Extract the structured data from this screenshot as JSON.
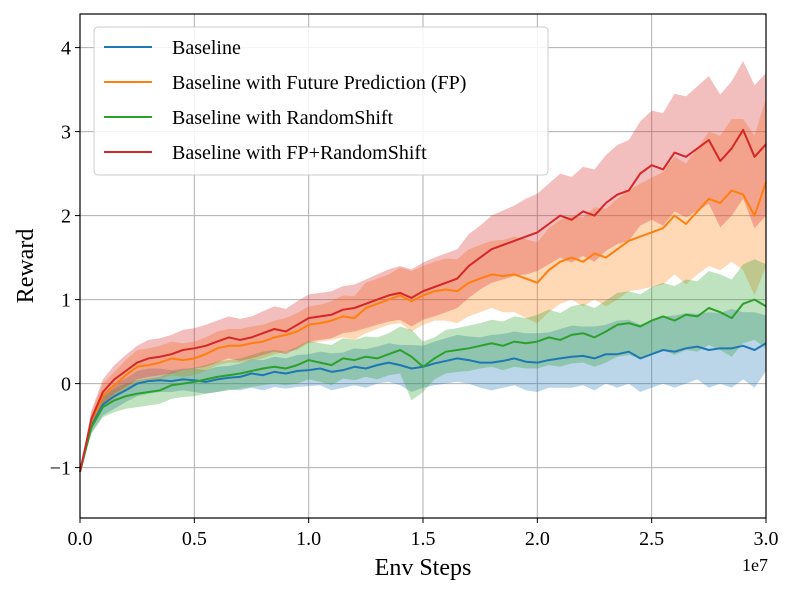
{
  "chart_data": {
    "type": "line",
    "title": "",
    "xlabel": "Env Steps",
    "ylabel": "Reward",
    "x_offset_label": "1e7",
    "xlim": [
      0,
      3.0
    ],
    "ylim": [
      -1.6,
      4.4
    ],
    "xticks": [
      0.0,
      0.5,
      1.0,
      1.5,
      2.0,
      2.5,
      3.0
    ],
    "xtick_labels": [
      "0.0",
      "0.5",
      "1.0",
      "1.5",
      "2.0",
      "2.5",
      "3.0"
    ],
    "yticks": [
      -1,
      0,
      1,
      2,
      3,
      4
    ],
    "ytick_labels": [
      "−1",
      "0",
      "1",
      "2",
      "3",
      "4"
    ],
    "grid": true,
    "legend_position": "top-left",
    "x": [
      0.0,
      0.05,
      0.1,
      0.15,
      0.2,
      0.25,
      0.3,
      0.35,
      0.4,
      0.45,
      0.5,
      0.55,
      0.6,
      0.65,
      0.7,
      0.75,
      0.8,
      0.85,
      0.9,
      0.95,
      1.0,
      1.05,
      1.1,
      1.15,
      1.2,
      1.25,
      1.3,
      1.35,
      1.4,
      1.45,
      1.5,
      1.55,
      1.6,
      1.65,
      1.7,
      1.75,
      1.8,
      1.85,
      1.9,
      1.95,
      2.0,
      2.05,
      2.1,
      2.15,
      2.2,
      2.25,
      2.3,
      2.35,
      2.4,
      2.45,
      2.5,
      2.55,
      2.6,
      2.65,
      2.7,
      2.75,
      2.8,
      2.85,
      2.9,
      2.95,
      3.0
    ],
    "series": [
      {
        "name": "Baseline",
        "color": "#1f77b4",
        "values": [
          -1.05,
          -0.5,
          -0.25,
          -0.15,
          -0.08,
          0.0,
          0.03,
          0.04,
          0.03,
          0.05,
          0.04,
          0.02,
          0.05,
          0.07,
          0.08,
          0.12,
          0.1,
          0.14,
          0.12,
          0.15,
          0.16,
          0.18,
          0.14,
          0.16,
          0.2,
          0.18,
          0.22,
          0.25,
          0.22,
          0.18,
          0.2,
          0.24,
          0.27,
          0.3,
          0.28,
          0.25,
          0.25,
          0.27,
          0.3,
          0.26,
          0.25,
          0.28,
          0.3,
          0.32,
          0.33,
          0.3,
          0.35,
          0.35,
          0.38,
          0.3,
          0.35,
          0.4,
          0.38,
          0.42,
          0.44,
          0.4,
          0.42,
          0.42,
          0.45,
          0.4,
          0.48
        ],
        "lower": [
          -1.05,
          -0.58,
          -0.38,
          -0.3,
          -0.22,
          -0.15,
          -0.12,
          -0.1,
          -0.1,
          -0.08,
          -0.1,
          -0.12,
          -0.1,
          -0.07,
          -0.08,
          -0.05,
          -0.08,
          -0.04,
          -0.06,
          -0.04,
          -0.03,
          -0.02,
          -0.08,
          -0.05,
          -0.02,
          -0.05,
          0.0,
          0.02,
          -0.02,
          -0.1,
          -0.05,
          -0.02,
          0.0,
          0.02,
          0.0,
          -0.05,
          -0.08,
          -0.05,
          -0.02,
          -0.08,
          -0.1,
          -0.05,
          -0.05,
          -0.05,
          -0.02,
          -0.08,
          0.0,
          -0.05,
          0.0,
          -0.1,
          -0.05,
          0.0,
          -0.05,
          0.0,
          0.05,
          -0.05,
          0.0,
          -0.05,
          0.05,
          -0.05,
          0.15
        ],
        "upper": [
          -1.05,
          -0.42,
          -0.12,
          0.0,
          0.06,
          0.15,
          0.18,
          0.18,
          0.16,
          0.18,
          0.18,
          0.16,
          0.2,
          0.21,
          0.24,
          0.29,
          0.28,
          0.32,
          0.3,
          0.34,
          0.35,
          0.38,
          0.36,
          0.37,
          0.42,
          0.41,
          0.44,
          0.48,
          0.46,
          0.46,
          0.45,
          0.5,
          0.54,
          0.58,
          0.56,
          0.55,
          0.58,
          0.59,
          0.62,
          0.6,
          0.6,
          0.61,
          0.65,
          0.69,
          0.68,
          0.68,
          0.7,
          0.75,
          0.76,
          0.7,
          0.75,
          0.8,
          0.81,
          0.84,
          0.83,
          0.85,
          0.84,
          0.89,
          0.85,
          0.85,
          0.81
        ]
      },
      {
        "name": "Baseline with Future Prediction (FP)",
        "color": "#ff7f0e",
        "values": [
          -1.05,
          -0.45,
          -0.15,
          -0.02,
          0.1,
          0.2,
          0.22,
          0.25,
          0.3,
          0.28,
          0.3,
          0.35,
          0.42,
          0.45,
          0.45,
          0.48,
          0.5,
          0.55,
          0.58,
          0.62,
          0.7,
          0.72,
          0.75,
          0.8,
          0.78,
          0.9,
          0.95,
          1.0,
          1.05,
          0.98,
          1.05,
          1.1,
          1.12,
          1.1,
          1.2,
          1.25,
          1.3,
          1.28,
          1.3,
          1.25,
          1.2,
          1.35,
          1.45,
          1.5,
          1.45,
          1.55,
          1.5,
          1.6,
          1.7,
          1.75,
          1.8,
          1.85,
          2.0,
          1.9,
          2.05,
          2.2,
          2.15,
          2.3,
          2.25,
          2.0,
          2.4
        ],
        "lower": [
          -1.05,
          -0.55,
          -0.3,
          -0.18,
          -0.08,
          0.0,
          0.02,
          0.05,
          0.1,
          0.08,
          0.1,
          0.15,
          0.22,
          0.25,
          0.25,
          0.28,
          0.3,
          0.35,
          0.38,
          0.4,
          0.48,
          0.5,
          0.52,
          0.55,
          0.52,
          0.6,
          0.65,
          0.7,
          0.72,
          0.62,
          0.7,
          0.75,
          0.75,
          0.72,
          0.8,
          0.85,
          0.9,
          0.85,
          0.85,
          0.78,
          0.72,
          0.85,
          0.95,
          1.0,
          0.92,
          1.0,
          0.92,
          1.0,
          1.1,
          1.12,
          1.15,
          1.18,
          1.3,
          1.18,
          1.3,
          1.4,
          1.35,
          1.45,
          1.35,
          1.05,
          1.4
        ],
        "upper": [
          -1.05,
          -0.35,
          0.0,
          0.14,
          0.28,
          0.4,
          0.42,
          0.45,
          0.5,
          0.48,
          0.5,
          0.55,
          0.62,
          0.65,
          0.65,
          0.68,
          0.7,
          0.75,
          0.78,
          0.84,
          0.92,
          0.94,
          0.98,
          1.05,
          1.04,
          1.2,
          1.25,
          1.3,
          1.38,
          1.34,
          1.4,
          1.45,
          1.49,
          1.48,
          1.6,
          1.65,
          1.7,
          1.71,
          1.75,
          1.72,
          1.68,
          1.85,
          1.95,
          2.0,
          1.98,
          2.1,
          2.08,
          2.2,
          2.3,
          2.38,
          2.45,
          2.52,
          2.7,
          2.62,
          2.8,
          3.0,
          2.95,
          3.15,
          3.15,
          2.95,
          3.4
        ]
      },
      {
        "name": "Baseline with RandomShift",
        "color": "#2ca02c",
        "values": [
          -1.05,
          -0.52,
          -0.28,
          -0.2,
          -0.15,
          -0.12,
          -0.1,
          -0.08,
          -0.02,
          0.0,
          0.02,
          0.05,
          0.08,
          0.1,
          0.12,
          0.15,
          0.18,
          0.2,
          0.18,
          0.22,
          0.28,
          0.25,
          0.22,
          0.3,
          0.28,
          0.32,
          0.3,
          0.35,
          0.4,
          0.32,
          0.2,
          0.3,
          0.38,
          0.4,
          0.42,
          0.45,
          0.48,
          0.45,
          0.5,
          0.48,
          0.5,
          0.55,
          0.52,
          0.58,
          0.6,
          0.55,
          0.62,
          0.7,
          0.72,
          0.68,
          0.75,
          0.8,
          0.75,
          0.82,
          0.8,
          0.9,
          0.85,
          0.78,
          0.95,
          1.0,
          0.92
        ],
        "lower": [
          -1.05,
          -0.6,
          -0.4,
          -0.34,
          -0.3,
          -0.28,
          -0.26,
          -0.24,
          -0.18,
          -0.16,
          -0.15,
          -0.12,
          -0.1,
          -0.08,
          -0.06,
          -0.04,
          -0.02,
          0.0,
          -0.02,
          0.0,
          0.05,
          0.02,
          -0.02,
          0.06,
          0.04,
          0.08,
          0.05,
          0.1,
          0.12,
          -0.2,
          -0.1,
          0.05,
          0.12,
          0.14,
          0.15,
          0.18,
          0.2,
          0.16,
          0.2,
          0.18,
          0.18,
          0.22,
          0.2,
          0.24,
          0.25,
          0.2,
          0.25,
          0.32,
          0.34,
          0.3,
          0.35,
          0.4,
          0.34,
          0.4,
          0.38,
          0.46,
          0.4,
          0.32,
          0.48,
          0.52,
          0.42
        ],
        "upper": [
          -1.05,
          -0.44,
          -0.16,
          -0.06,
          0.0,
          0.04,
          0.06,
          0.08,
          0.14,
          0.16,
          0.19,
          0.22,
          0.26,
          0.28,
          0.3,
          0.34,
          0.38,
          0.4,
          0.38,
          0.44,
          0.51,
          0.48,
          0.46,
          0.54,
          0.52,
          0.56,
          0.55,
          0.6,
          0.68,
          0.64,
          0.5,
          0.55,
          0.64,
          0.66,
          0.69,
          0.72,
          0.76,
          0.74,
          0.8,
          0.78,
          0.82,
          0.88,
          0.84,
          0.92,
          0.95,
          0.9,
          0.99,
          1.08,
          1.1,
          1.06,
          1.15,
          1.2,
          1.16,
          1.24,
          1.22,
          1.34,
          1.3,
          1.24,
          1.42,
          1.48,
          1.42
        ]
      },
      {
        "name": "Baseline with FP+RandomShift",
        "color": "#d62728",
        "values": [
          -1.05,
          -0.42,
          -0.1,
          0.05,
          0.15,
          0.25,
          0.3,
          0.32,
          0.35,
          0.4,
          0.42,
          0.45,
          0.5,
          0.55,
          0.52,
          0.55,
          0.6,
          0.65,
          0.62,
          0.7,
          0.78,
          0.8,
          0.82,
          0.88,
          0.9,
          0.95,
          1.0,
          1.05,
          1.08,
          1.02,
          1.1,
          1.15,
          1.2,
          1.25,
          1.4,
          1.5,
          1.6,
          1.65,
          1.7,
          1.75,
          1.8,
          1.9,
          2.0,
          1.95,
          2.05,
          2.0,
          2.15,
          2.25,
          2.3,
          2.5,
          2.6,
          2.55,
          2.75,
          2.7,
          2.8,
          2.9,
          2.65,
          2.8,
          3.02,
          2.7,
          2.85
        ],
        "lower": [
          -1.05,
          -0.52,
          -0.25,
          -0.12,
          -0.04,
          0.05,
          0.08,
          0.1,
          0.12,
          0.16,
          0.18,
          0.2,
          0.25,
          0.3,
          0.27,
          0.3,
          0.34,
          0.38,
          0.35,
          0.42,
          0.5,
          0.52,
          0.54,
          0.6,
          0.62,
          0.66,
          0.7,
          0.74,
          0.76,
          0.68,
          0.76,
          0.8,
          0.85,
          0.9,
          1.02,
          1.12,
          1.2,
          1.24,
          1.28,
          1.3,
          1.34,
          1.42,
          1.5,
          1.44,
          1.52,
          1.45,
          1.58,
          1.66,
          1.7,
          1.88,
          1.95,
          1.88,
          2.05,
          1.98,
          2.06,
          2.14,
          1.86,
          2.0,
          2.2,
          1.85,
          2.0
        ],
        "upper": [
          -1.05,
          -0.32,
          0.05,
          0.22,
          0.34,
          0.45,
          0.52,
          0.54,
          0.58,
          0.64,
          0.66,
          0.7,
          0.75,
          0.8,
          0.77,
          0.8,
          0.86,
          0.92,
          0.89,
          0.98,
          1.06,
          1.08,
          1.1,
          1.16,
          1.18,
          1.24,
          1.3,
          1.36,
          1.4,
          1.36,
          1.44,
          1.5,
          1.55,
          1.6,
          1.78,
          1.88,
          2.0,
          2.06,
          2.12,
          2.2,
          2.26,
          2.38,
          2.5,
          2.46,
          2.58,
          2.55,
          2.72,
          2.84,
          2.9,
          3.12,
          3.25,
          3.22,
          3.45,
          3.42,
          3.54,
          3.66,
          3.44,
          3.6,
          3.84,
          3.55,
          3.7
        ]
      }
    ]
  }
}
